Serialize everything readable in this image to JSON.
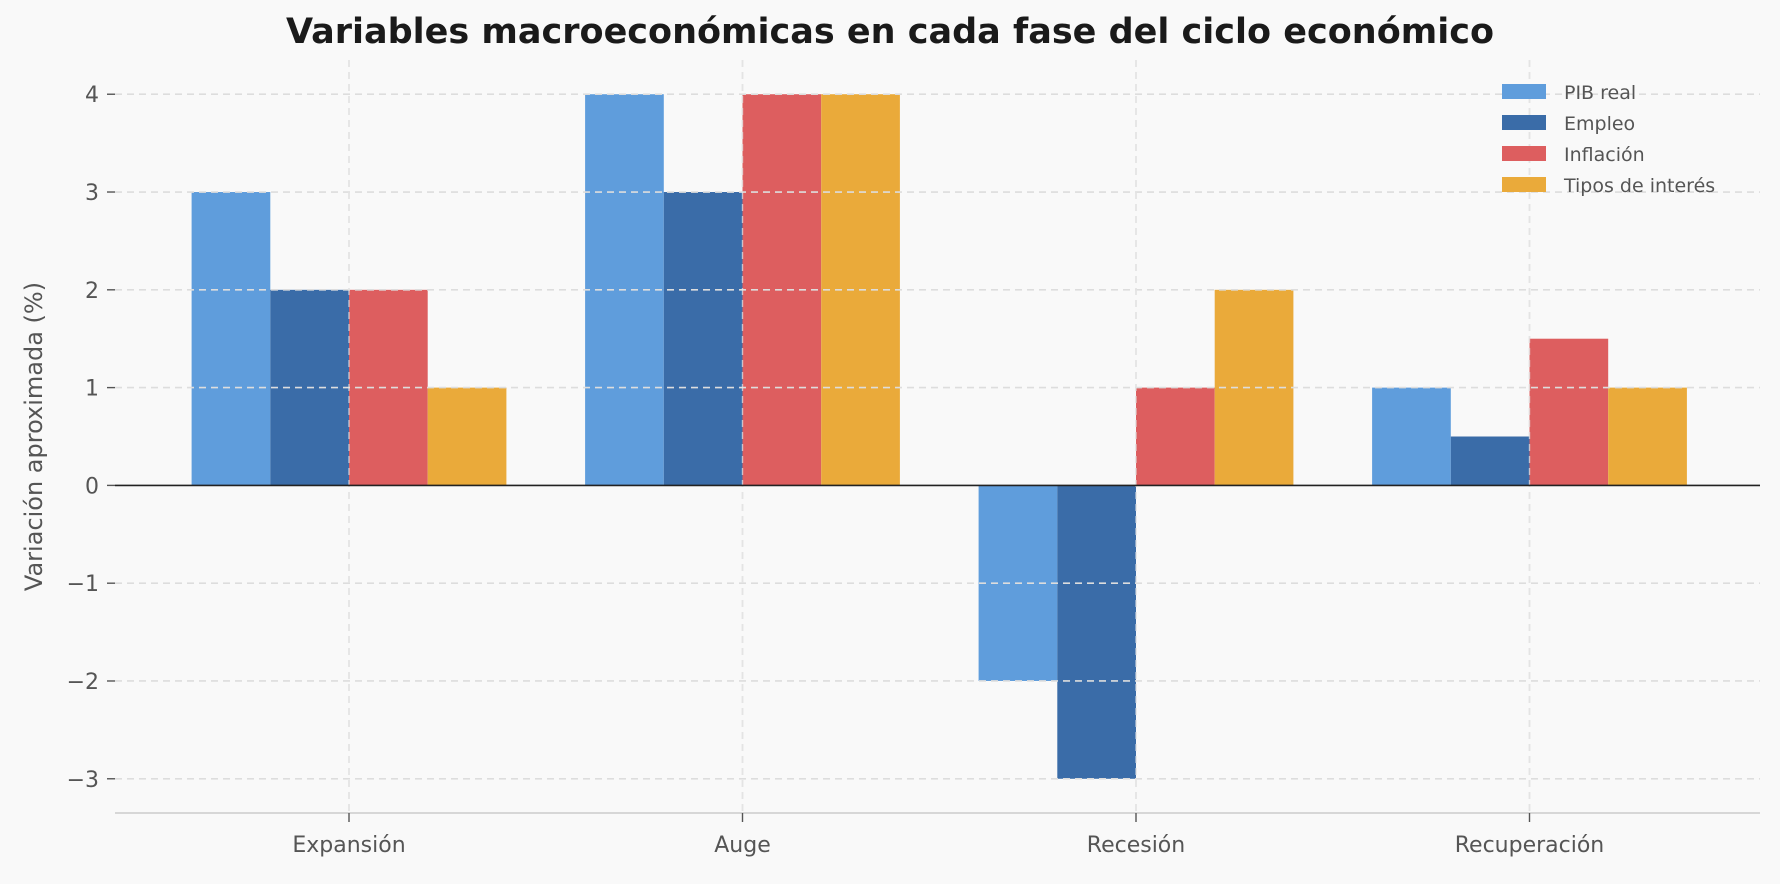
{
  "chart_data": {
    "type": "bar",
    "title": "Variables macroeconómicas en cada fase del ciclo económico",
    "xlabel": "",
    "ylabel": "Variación aproximada (%)",
    "categories": [
      "Expansión",
      "Auge",
      "Recesión",
      "Recuperación"
    ],
    "series": [
      {
        "name": "PIB real",
        "color": "#5f9ddc",
        "values": [
          3,
          4,
          -2,
          1
        ]
      },
      {
        "name": "Empleo",
        "color": "#3a6ca8",
        "values": [
          2,
          3,
          -3,
          0.5
        ]
      },
      {
        "name": "Inflación",
        "color": "#dd5e5f",
        "values": [
          2,
          4,
          1,
          1.5
        ]
      },
      {
        "name": "Tipos de interés",
        "color": "#eaaa3a",
        "values": [
          1,
          4,
          2,
          1
        ]
      }
    ],
    "ylim": [
      -3.35,
      4.35
    ],
    "yticks": [
      -3,
      -2,
      -1,
      0,
      1,
      2,
      3,
      4
    ],
    "ytick_labels": [
      "−3",
      "−2",
      "−1",
      "0",
      "1",
      "2",
      "3",
      "4"
    ],
    "grid": true,
    "legend_position": "top-right"
  }
}
